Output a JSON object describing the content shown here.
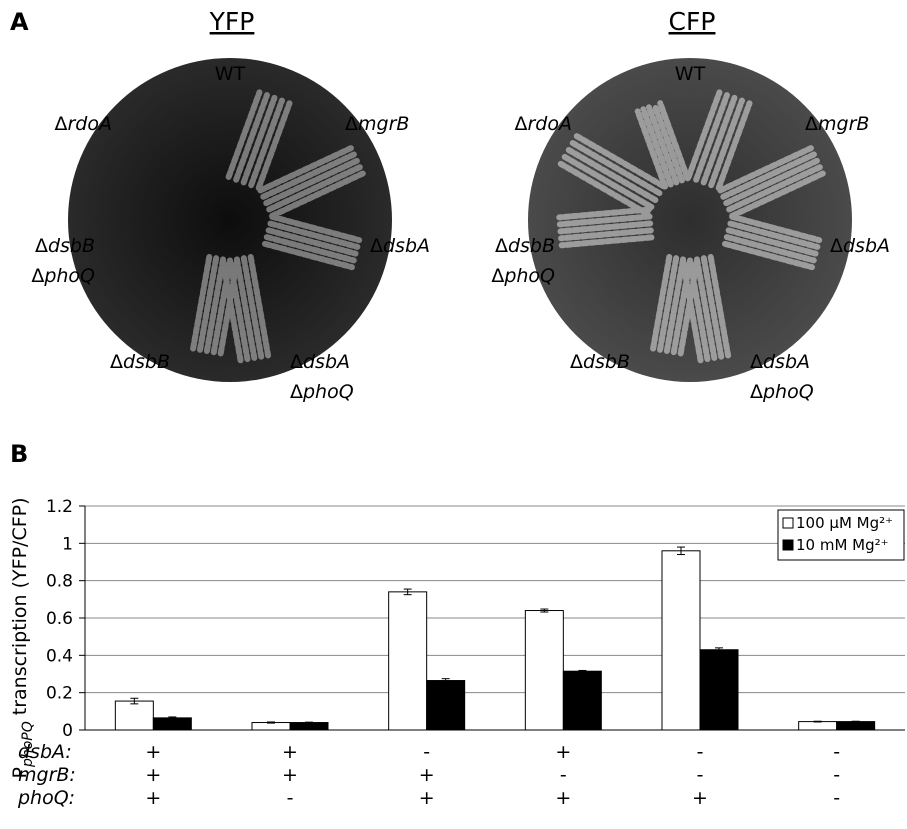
{
  "panel_a": {
    "label": "A",
    "plates": [
      {
        "title": "YFP",
        "strains": [
          [
            "WT"
          ],
          [
            "ΔrdoA"
          ],
          [
            "ΔmgrB"
          ],
          [
            "ΔdsbB",
            "ΔphoQ"
          ],
          [
            "ΔdsbA"
          ],
          [
            "ΔdsbB"
          ],
          [
            "ΔdsbA",
            "ΔphoQ"
          ]
        ]
      },
      {
        "title": "CFP",
        "strains": [
          [
            "WT"
          ],
          [
            "ΔrdoA"
          ],
          [
            "ΔmgrB"
          ],
          [
            "ΔdsbB",
            "ΔphoQ"
          ],
          [
            "ΔdsbA"
          ],
          [
            "ΔdsbB"
          ],
          [
            "ΔdsbA",
            "ΔphoQ"
          ]
        ]
      }
    ]
  },
  "chart_data": {
    "type": "bar",
    "panel_label": "B",
    "ylabel": {
      "main": "P",
      "subscript": "phoPQ",
      "rest": "transcription (YFP/CFP)"
    },
    "categories": [
      null,
      null,
      null,
      null,
      null,
      null
    ],
    "genotype_rows": [
      {
        "name": "dsbA:",
        "values": [
          "+",
          "+",
          "-",
          "+",
          "-",
          "-"
        ]
      },
      {
        "name": "mgrB:",
        "values": [
          "+",
          "+",
          "+",
          "-",
          "-",
          "-"
        ]
      },
      {
        "name": "phoQ:",
        "values": [
          "+",
          "-",
          "+",
          "+",
          "+",
          "-"
        ]
      }
    ],
    "series": [
      {
        "name": "100 μM Mg²⁺",
        "color": "#ffffff",
        "values": [
          0.155,
          0.04,
          0.74,
          0.64,
          0.96,
          0.045
        ],
        "errors": [
          0.015,
          0.003,
          0.015,
          0.008,
          0.02,
          0.002
        ]
      },
      {
        "name": "10 mM Mg²⁺",
        "color": "#000000",
        "values": [
          0.065,
          0.04,
          0.265,
          0.315,
          0.43,
          0.045
        ],
        "errors": [
          0.005,
          0.002,
          0.01,
          0.004,
          0.01,
          0.002
        ]
      }
    ],
    "ylim": [
      0,
      1.2
    ],
    "yticks": [
      0,
      0.2,
      0.4,
      0.6,
      0.8,
      1,
      1.2
    ],
    "grid": true,
    "legend": "upper right"
  }
}
